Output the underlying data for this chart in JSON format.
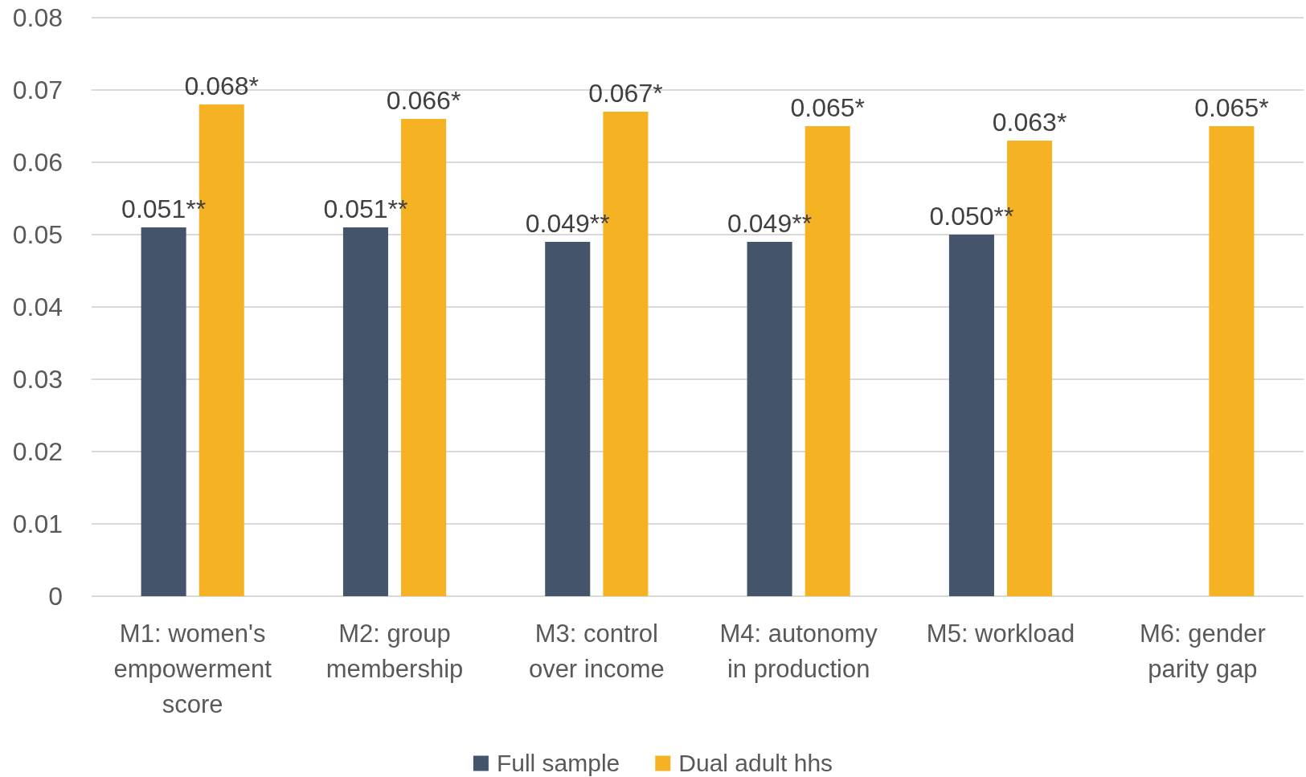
{
  "chart_data": {
    "type": "bar",
    "categories": [
      "M1: women's empowerment score",
      "M2: group membership",
      "M3: control over income",
      "M4: autonomy in production",
      "M5: workload",
      "M6: gender parity gap"
    ],
    "series": [
      {
        "name": "Full sample",
        "color": "#44546a",
        "values": [
          0.051,
          0.051,
          0.049,
          0.049,
          0.05,
          null
        ],
        "value_labels": [
          "0.051**",
          "0.051**",
          "0.049**",
          "0.049**",
          "0.050**",
          null
        ]
      },
      {
        "name": "Dual adult hhs",
        "color": "#f5b223",
        "values": [
          0.068,
          0.066,
          0.067,
          0.065,
          0.063,
          0.065
        ],
        "value_labels": [
          "0.068*",
          "0.066*",
          "0.067*",
          "0.065*",
          "0.063*",
          "0.065*"
        ]
      }
    ],
    "ylim": [
      0,
      0.08
    ],
    "yticks": [
      0,
      0.01,
      0.02,
      0.03,
      0.04,
      0.05,
      0.06,
      0.07,
      0.08
    ],
    "grid": "y",
    "legend": "bottom"
  }
}
